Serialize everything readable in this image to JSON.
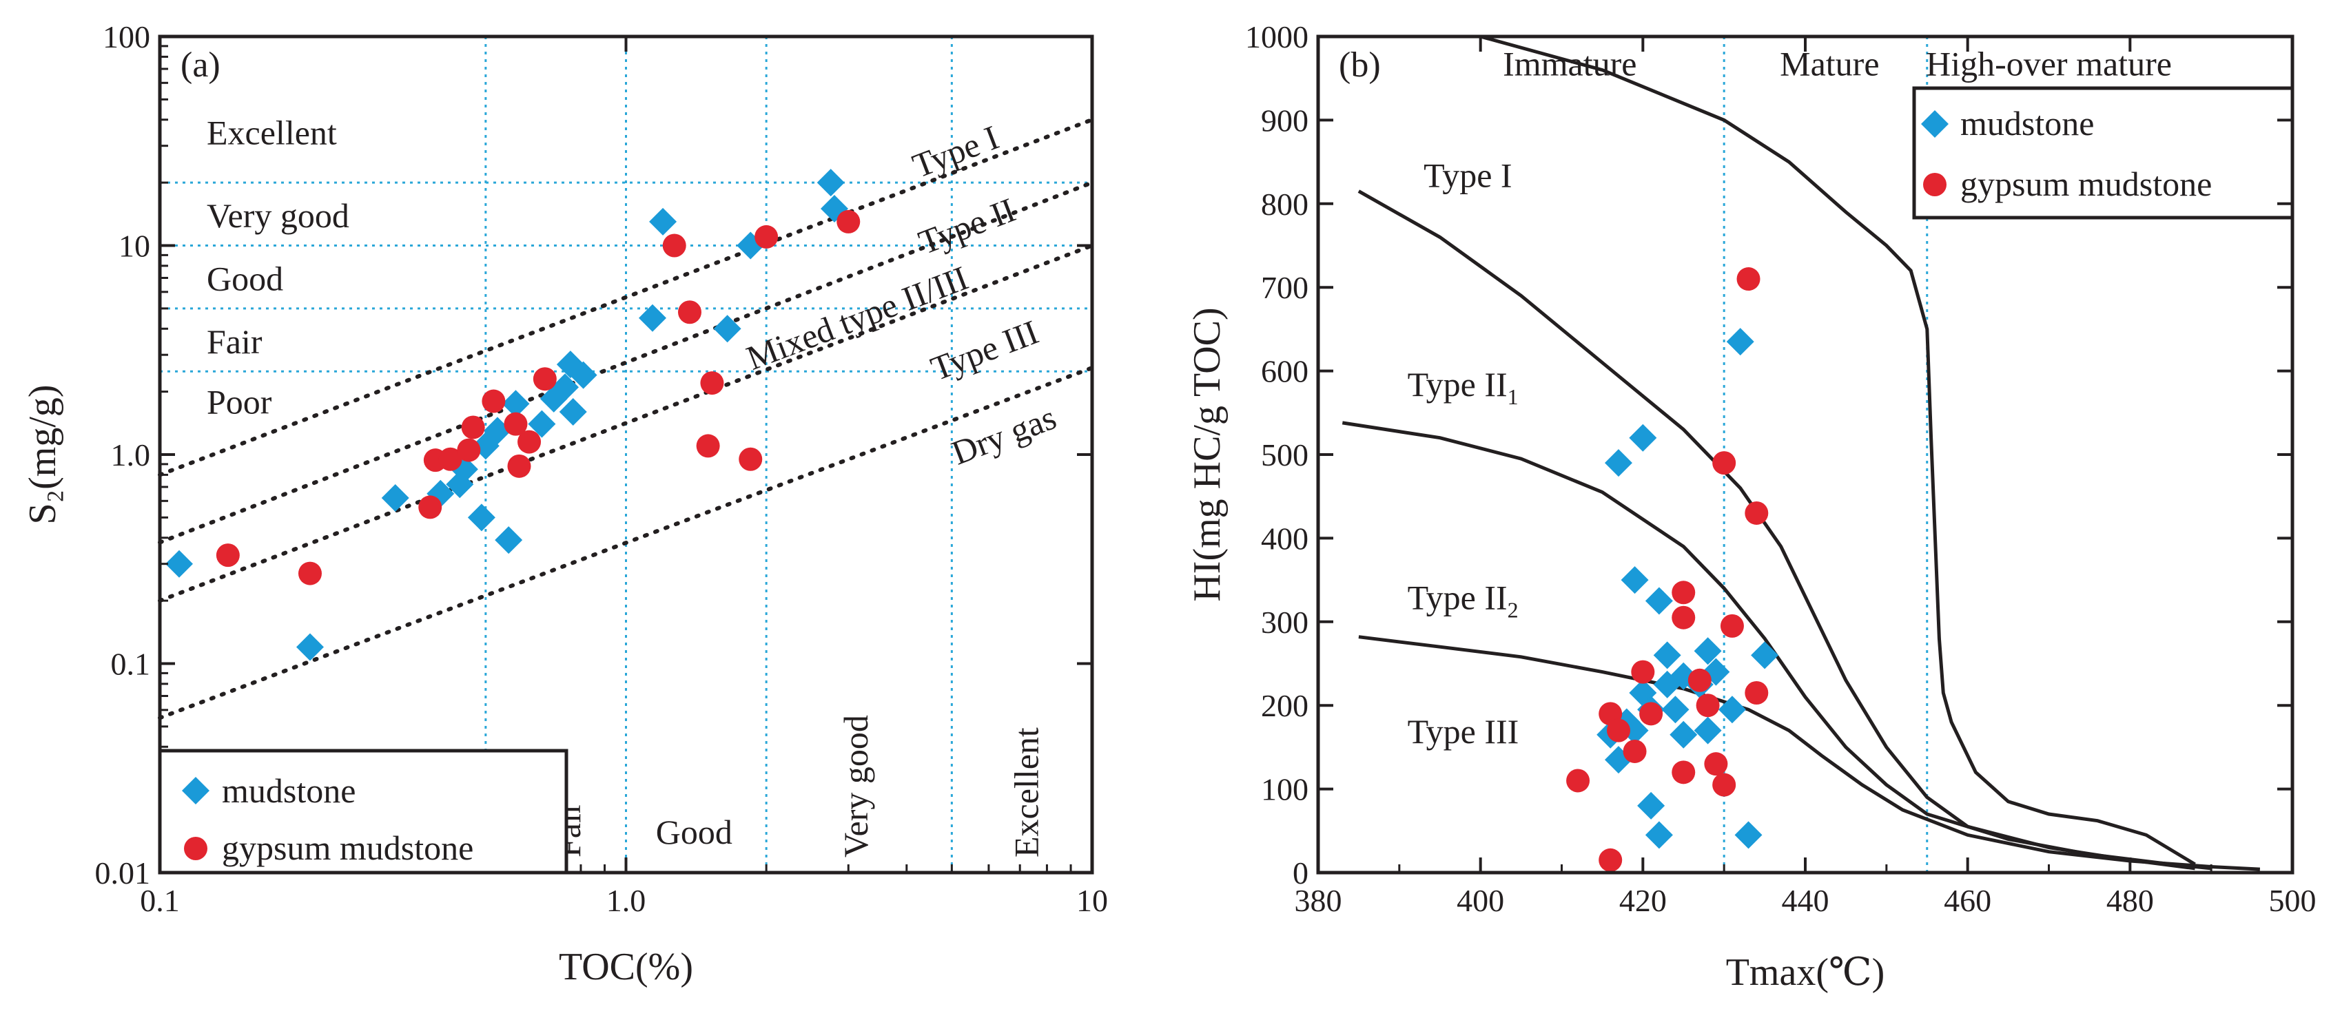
{
  "chart_data": [
    {
      "id": "a",
      "type": "scatter",
      "panel_label": "(a)",
      "xlabel": "TOC(%)",
      "ylabel": "S₂(mg/g)",
      "xscale": "log",
      "yscale": "log",
      "xlim": [
        0.1,
        10
      ],
      "ylim": [
        0.01,
        100
      ],
      "x_ticks": [
        {
          "value": 0.1,
          "label": "0.1"
        },
        {
          "value": 1.0,
          "label": "1.0"
        },
        {
          "value": 10,
          "label": "10"
        }
      ],
      "y_ticks": [
        {
          "value": 0.01,
          "label": "0.01"
        },
        {
          "value": 0.1,
          "label": "0.1"
        },
        {
          "value": 1.0,
          "label": "1.0"
        },
        {
          "value": 10,
          "label": "10"
        },
        {
          "value": 100,
          "label": "100"
        }
      ],
      "vertical_guides": [
        0.5,
        1.0,
        2.0,
        5.0
      ],
      "horizontal_guides": [
        2.5,
        5,
        10,
        20
      ],
      "s2_classes": [
        {
          "label": "Excellent",
          "y": 35
        },
        {
          "label": "Very good",
          "y": 14
        },
        {
          "label": "Good",
          "y": 7
        },
        {
          "label": "Fair",
          "y": 3.5
        },
        {
          "label": "Poor",
          "y": 1.8
        }
      ],
      "toc_classes": [
        {
          "label": "Fair",
          "x": 0.75
        },
        {
          "label": "Good",
          "x": 1.4
        },
        {
          "label": "Very good",
          "x": 3.1
        },
        {
          "label": "Excellent",
          "x": 7.2
        }
      ],
      "type_lines": [
        {
          "label": "Type I",
          "from": [
            0.1,
            0.8
          ],
          "to": [
            10,
            40
          ],
          "label_at": [
            5.2,
            25
          ]
        },
        {
          "label": "Type II",
          "from": [
            0.1,
            0.38
          ],
          "to": [
            10,
            20
          ],
          "label_at": [
            5.5,
            11
          ]
        },
        {
          "label": "Mixed type II/III",
          "from": [
            0.1,
            0.2
          ],
          "to": [
            10,
            10
          ],
          "label_at": [
            3.2,
            4.0
          ]
        },
        {
          "label": "Type III",
          "from": [
            0.1,
            0.055
          ],
          "to": [
            10,
            2.6
          ],
          "label_at": [
            6.0,
            2.8
          ]
        },
        {
          "label": "Dry gas",
          "label_at": [
            6.6,
            1.1
          ]
        }
      ],
      "series": [
        {
          "name": "mudstone",
          "marker": "diamond",
          "color": "#1a9ad8",
          "points": [
            [
              0.11,
              0.3
            ],
            [
              0.21,
              0.12
            ],
            [
              0.32,
              0.62
            ],
            [
              0.4,
              0.65
            ],
            [
              0.44,
              0.72
            ],
            [
              0.45,
              0.85
            ],
            [
              0.49,
              0.5
            ],
            [
              0.5,
              1.1
            ],
            [
              0.53,
              1.3
            ],
            [
              0.56,
              0.39
            ],
            [
              0.58,
              1.75
            ],
            [
              0.66,
              1.4
            ],
            [
              0.7,
              1.85
            ],
            [
              0.74,
              2.1
            ],
            [
              0.76,
              2.7
            ],
            [
              0.77,
              1.6
            ],
            [
              0.81,
              2.4
            ],
            [
              1.14,
              4.5
            ],
            [
              1.2,
              13
            ],
            [
              1.65,
              4.0
            ],
            [
              1.85,
              10
            ],
            [
              2.75,
              20
            ],
            [
              2.8,
              15
            ]
          ]
        },
        {
          "name": "gypsum mudstone",
          "marker": "circle",
          "color": "#e2252f",
          "points": [
            [
              0.14,
              0.33
            ],
            [
              0.21,
              0.27
            ],
            [
              0.38,
              0.56
            ],
            [
              0.39,
              0.94
            ],
            [
              0.42,
              0.95
            ],
            [
              0.46,
              1.05
            ],
            [
              0.47,
              1.35
            ],
            [
              0.52,
              1.8
            ],
            [
              0.58,
              1.4
            ],
            [
              0.59,
              0.88
            ],
            [
              0.62,
              1.15
            ],
            [
              0.67,
              2.3
            ],
            [
              1.27,
              10
            ],
            [
              1.37,
              4.8
            ],
            [
              1.5,
              1.1
            ],
            [
              1.53,
              2.2
            ],
            [
              1.85,
              0.95
            ],
            [
              2.0,
              11
            ],
            [
              3.0,
              13
            ]
          ]
        }
      ],
      "legend": {
        "position": "bottom-left",
        "entries": [
          "mudstone",
          "gypsum mudstone"
        ]
      }
    },
    {
      "id": "b",
      "type": "scatter",
      "panel_label": "(b)",
      "xlabel": "Tmax(℃)",
      "ylabel": "HI(mg HC/g TOC)",
      "xlim": [
        380,
        500
      ],
      "ylim": [
        0,
        1000
      ],
      "x_ticks": [
        {
          "value": 380,
          "label": "380"
        },
        {
          "value": 400,
          "label": "400"
        },
        {
          "value": 420,
          "label": "420"
        },
        {
          "value": 440,
          "label": "440"
        },
        {
          "value": 460,
          "label": "460"
        },
        {
          "value": 480,
          "label": "480"
        },
        {
          "value": 500,
          "label": "500"
        }
      ],
      "y_ticks": [
        {
          "value": 0,
          "label": "0"
        },
        {
          "value": 100,
          "label": "100"
        },
        {
          "value": 200,
          "label": "200"
        },
        {
          "value": 300,
          "label": "300"
        },
        {
          "value": 400,
          "label": "400"
        },
        {
          "value": 500,
          "label": "500"
        },
        {
          "value": 600,
          "label": "600"
        },
        {
          "value": 700,
          "label": "700"
        },
        {
          "value": 800,
          "label": "800"
        },
        {
          "value": 900,
          "label": "900"
        },
        {
          "value": 1000,
          "label": "1000"
        }
      ],
      "vertical_guides": [
        430,
        455
      ],
      "zones": [
        {
          "label": "Immature",
          "x": 411,
          "y": 965
        },
        {
          "label": "Mature",
          "x": 443,
          "y": 965
        },
        {
          "label": "High-over mature",
          "x": 470,
          "y": 965
        }
      ],
      "type_curves": [
        {
          "label": "Type I",
          "label_at": [
            393,
            820
          ],
          "points": [
            [
              385,
              815
            ],
            [
              395,
              760
            ],
            [
              405,
              690
            ],
            [
              415,
              610
            ],
            [
              425,
              530
            ],
            [
              432,
              460
            ],
            [
              437,
              390
            ],
            [
              441,
              310
            ],
            [
              445,
              230
            ],
            [
              450,
              150
            ],
            [
              455,
              90
            ],
            [
              460,
              55
            ],
            [
              470,
              30
            ],
            [
              480,
              15
            ],
            [
              488,
              5
            ]
          ]
        },
        {
          "label": "Type II",
          "subscript": "1",
          "label_at": [
            391,
            570
          ],
          "points": [
            [
              383,
              538
            ],
            [
              395,
              520
            ],
            [
              405,
              495
            ],
            [
              415,
              455
            ],
            [
              425,
              390
            ],
            [
              430,
              340
            ],
            [
              435,
              280
            ],
            [
              440,
              210
            ],
            [
              445,
              150
            ],
            [
              450,
              105
            ],
            [
              455,
              70
            ],
            [
              465,
              40
            ],
            [
              475,
              22
            ],
            [
              485,
              10
            ],
            [
              490,
              5
            ]
          ]
        },
        {
          "label": "Type II",
          "subscript": "2",
          "label_at": [
            391,
            315
          ],
          "points": [
            [
              385,
              282
            ],
            [
              395,
              270
            ],
            [
              405,
              258
            ],
            [
              415,
              240
            ],
            [
              425,
              220
            ],
            [
              433,
              195
            ],
            [
              438,
              170
            ],
            [
              442,
              140
            ],
            [
              447,
              105
            ],
            [
              452,
              75
            ],
            [
              460,
              45
            ],
            [
              470,
              25
            ],
            [
              480,
              14
            ],
            [
              490,
              7
            ],
            [
              496,
              4
            ]
          ]
        },
        {
          "label": "Type III",
          "label_at": [
            391,
            155
          ],
          "points": []
        },
        {
          "label": "",
          "points": [
            [
              400,
              1000
            ],
            [
              415,
              960
            ],
            [
              430,
              900
            ],
            [
              438,
              850
            ],
            [
              445,
              790
            ],
            [
              450,
              750
            ],
            [
              453,
              720
            ],
            [
              455,
              650
            ],
            [
              455.5,
              520
            ],
            [
              456,
              400
            ],
            [
              456.5,
              280
            ],
            [
              457,
              215
            ],
            [
              458,
              180
            ],
            [
              461,
              120
            ],
            [
              465,
              85
            ],
            [
              470,
              70
            ],
            [
              476,
              62
            ],
            [
              482,
              45
            ],
            [
              488,
              10
            ]
          ]
        }
      ],
      "series": [
        {
          "name": "mudstone",
          "marker": "diamond",
          "color": "#1a9ad8",
          "points": [
            [
              416,
              165
            ],
            [
              417,
              135
            ],
            [
              418,
              180
            ],
            [
              419,
              350
            ],
            [
              420,
              520
            ],
            [
              420,
              215
            ],
            [
              421,
              195
            ],
            [
              421,
              80
            ],
            [
              422,
              45
            ],
            [
              422,
              325
            ],
            [
              423,
              225
            ],
            [
              423,
              260
            ],
            [
              424,
              195
            ],
            [
              425,
              165
            ],
            [
              425,
              235
            ],
            [
              427,
              225
            ],
            [
              428,
              170
            ],
            [
              428,
              265
            ],
            [
              429,
              240
            ],
            [
              431,
              195
            ],
            [
              432,
              635
            ],
            [
              433,
              45
            ],
            [
              435,
              260
            ],
            [
              417,
              490
            ],
            [
              419,
              170
            ]
          ]
        },
        {
          "name": "gypsum mudstone",
          "marker": "circle",
          "color": "#e2252f",
          "points": [
            [
              412,
              110
            ],
            [
              416,
              15
            ],
            [
              416,
              190
            ],
            [
              417,
              170
            ],
            [
              419,
              145
            ],
            [
              420,
              240
            ],
            [
              421,
              190
            ],
            [
              425,
              335
            ],
            [
              425,
              305
            ],
            [
              425,
              120
            ],
            [
              427,
              230
            ],
            [
              428,
              200
            ],
            [
              429,
              130
            ],
            [
              430,
              490
            ],
            [
              430,
              105
            ],
            [
              431,
              295
            ],
            [
              433,
              710
            ],
            [
              434,
              430
            ],
            [
              434,
              215
            ]
          ]
        }
      ],
      "legend": {
        "position": "top-right",
        "entries": [
          "mudstone",
          "gypsum mudstone"
        ]
      }
    }
  ]
}
